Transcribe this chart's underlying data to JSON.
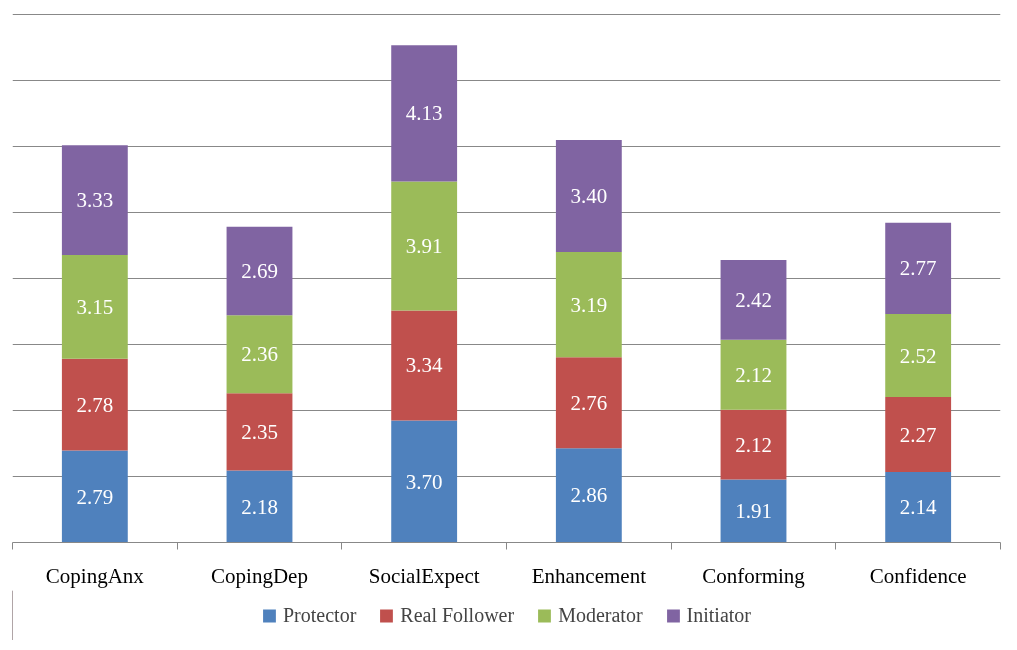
{
  "chart_data": {
    "type": "bar",
    "stacked": true,
    "categories": [
      "CopingAnx",
      "CopingDep",
      "SocialExpect",
      "Enhancement",
      "Conforming",
      "Confidence"
    ],
    "series": [
      {
        "name": "Protector",
        "color": "#4f81bd",
        "values": [
          2.79,
          2.18,
          3.7,
          2.86,
          1.91,
          2.14
        ],
        "value_labels": [
          "2.79",
          "2.18",
          "3.70",
          "2.86",
          "1.91",
          "2.14"
        ]
      },
      {
        "name": "Real Follower",
        "color": "#c0504d",
        "values": [
          2.78,
          2.35,
          3.34,
          2.76,
          2.12,
          2.27
        ],
        "value_labels": [
          "2.78",
          "2.35",
          "3.34",
          "2.76",
          "2.12",
          "2.27"
        ]
      },
      {
        "name": "Moderator",
        "color": "#9bbb59",
        "values": [
          3.15,
          2.36,
          3.91,
          3.19,
          2.12,
          2.52
        ],
        "value_labels": [
          "3.15",
          "2.36",
          "3.91",
          "3.19",
          "2.12",
          "2.52"
        ]
      },
      {
        "name": "Initiator",
        "color": "#8064a2",
        "values": [
          3.33,
          2.69,
          4.13,
          3.4,
          2.42,
          2.77
        ],
        "value_labels": [
          "3.33",
          "2.69",
          "4.13",
          "3.40",
          "2.42",
          "2.77"
        ]
      }
    ],
    "tick_labels": "x",
    "grid": "y",
    "legend": "bottom"
  }
}
